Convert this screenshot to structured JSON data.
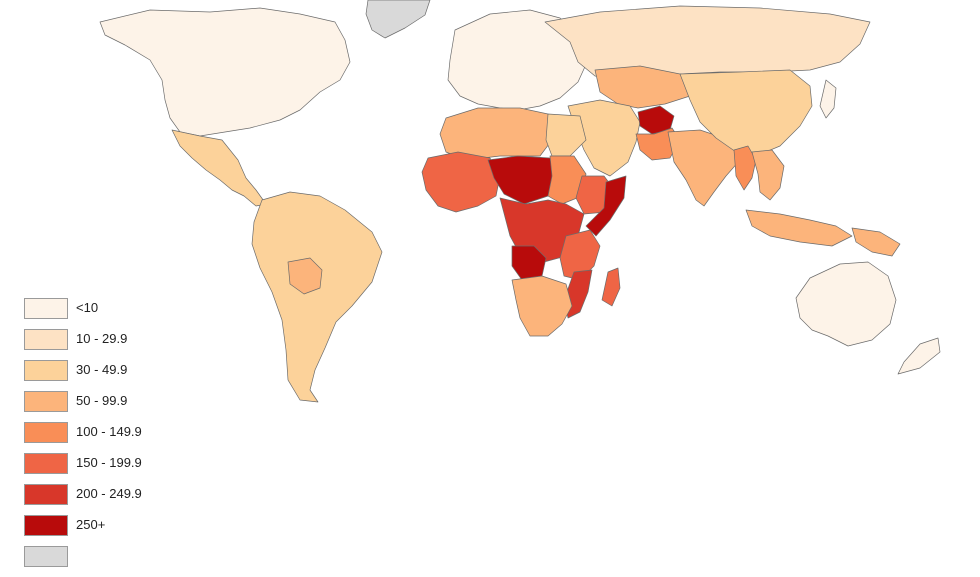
{
  "legend": {
    "items": [
      {
        "label": "<10",
        "color": "#fdf3e8"
      },
      {
        "label": "10 - 29.9",
        "color": "#fde2c4"
      },
      {
        "label": "30 - 49.9",
        "color": "#fcd29a"
      },
      {
        "label": "50 - 99.9",
        "color": "#fcb47b"
      },
      {
        "label": "100 - 149.9",
        "color": "#f98e57"
      },
      {
        "label": "150 - 199.9",
        "color": "#ef6545"
      },
      {
        "label": "200 - 249.9",
        "color": "#d8372a"
      },
      {
        "label": "250+",
        "color": "#b80b0b"
      },
      {
        "label": "",
        "color": "#d9d9d9"
      }
    ]
  },
  "regions": [
    {
      "id": "north-america",
      "class": "<10",
      "color": "#fdf3e8"
    },
    {
      "id": "greenland",
      "class": "no data",
      "color": "#d9d9d9"
    },
    {
      "id": "mexico-central-america",
      "class": "30 - 49.9",
      "color": "#fcd29a"
    },
    {
      "id": "south-america",
      "class": "30 - 49.9",
      "color": "#fcd29a"
    },
    {
      "id": "bolivia",
      "class": "50 - 99.9",
      "color": "#fcb47b"
    },
    {
      "id": "europe",
      "class": "<10",
      "color": "#fdf3e8"
    },
    {
      "id": "russia",
      "class": "10 - 29.9",
      "color": "#fde2c4"
    },
    {
      "id": "central-asia",
      "class": "50 - 99.9",
      "color": "#fcb47b"
    },
    {
      "id": "middle-east",
      "class": "30 - 49.9",
      "color": "#fcd29a"
    },
    {
      "id": "afghanistan",
      "class": "250+",
      "color": "#b80b0b"
    },
    {
      "id": "pakistan",
      "class": "100 - 149.9",
      "color": "#f98e57"
    },
    {
      "id": "india",
      "class": "50 - 99.9",
      "color": "#fcb47b"
    },
    {
      "id": "china",
      "class": "30 - 49.9",
      "color": "#fcd29a"
    },
    {
      "id": "southeast-asia",
      "class": "50 - 99.9",
      "color": "#fcb47b"
    },
    {
      "id": "myanmar",
      "class": "100 - 149.9",
      "color": "#f98e57"
    },
    {
      "id": "indonesia",
      "class": "50 - 99.9",
      "color": "#fcb47b"
    },
    {
      "id": "papua-new-guinea",
      "class": "50 - 99.9",
      "color": "#fcb47b"
    },
    {
      "id": "japan",
      "class": "<10",
      "color": "#fdf3e8"
    },
    {
      "id": "australia",
      "class": "<10",
      "color": "#fdf3e8"
    },
    {
      "id": "new-zealand",
      "class": "<10",
      "color": "#fdf3e8"
    },
    {
      "id": "north-africa",
      "class": "50 - 99.9",
      "color": "#fcb47b"
    },
    {
      "id": "egypt",
      "class": "30 - 49.9",
      "color": "#fcd29a"
    },
    {
      "id": "west-africa",
      "class": "150 - 199.9",
      "color": "#ef6545"
    },
    {
      "id": "mali-niger-chad",
      "class": "250+",
      "color": "#b80b0b"
    },
    {
      "id": "sudan",
      "class": "100 - 149.9",
      "color": "#f98e57"
    },
    {
      "id": "ethiopia",
      "class": "150 - 199.9",
      "color": "#ef6545"
    },
    {
      "id": "somalia",
      "class": "250+",
      "color": "#b80b0b"
    },
    {
      "id": "central-africa",
      "class": "200 - 249.9",
      "color": "#d8372a"
    },
    {
      "id": "angola",
      "class": "250+",
      "color": "#b80b0b"
    },
    {
      "id": "east-africa",
      "class": "150 - 199.9",
      "color": "#ef6545"
    },
    {
      "id": "mozambique",
      "class": "200 - 249.9",
      "color": "#d8372a"
    },
    {
      "id": "southern-africa",
      "class": "50 - 99.9",
      "color": "#fcb47b"
    },
    {
      "id": "madagascar",
      "class": "150 - 199.9",
      "color": "#ef6545"
    }
  ]
}
